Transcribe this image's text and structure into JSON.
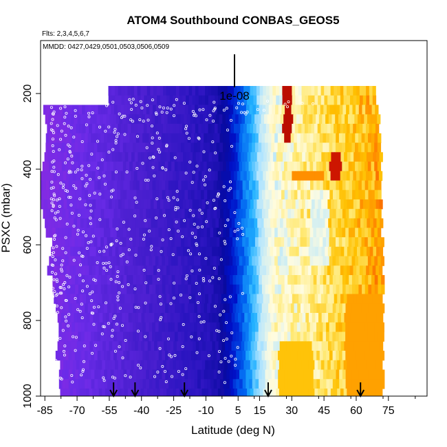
{
  "chart_data": {
    "type": "heatmap",
    "title": "ATOM4 Southbound CONBAS_GEOS5",
    "subtitle_flights": "Flts: 2,3,4,5,6,7",
    "subtitle_dates": "MMDD: 0427,0429,0501,0503,0506,0509",
    "xlabel": "Latitude (deg N)",
    "ylabel": "PSXC (mbar)",
    "xlim": [
      -87,
      93
    ],
    "ylim": [
      1000,
      60
    ],
    "y_reversed": true,
    "x_ticks": [
      -85,
      -70,
      -55,
      -40,
      -25,
      -10,
      5,
      15,
      30,
      45,
      60,
      75
    ],
    "x_ticks_labels": [
      "-85",
      "-70",
      "-55",
      "-40",
      "-25",
      "-10",
      "5",
      "15",
      "30",
      "45",
      "60",
      "75"
    ],
    "y_ticks": [
      200,
      400,
      600,
      800,
      1000
    ],
    "y_ticks_labels": [
      "200",
      "400",
      "600",
      "800",
      "1000"
    ],
    "scale_bar_label": "1e-08",
    "arrow_latitudes": [
      -53,
      -43,
      -20,
      19,
      62
    ],
    "colormap": [
      "#8a2be2",
      "#6a2be8",
      "#4b1fd0",
      "#2a14c0",
      "#0a0a9e",
      "#0010c8",
      "#0060f0",
      "#20b0ff",
      "#b0e4ff",
      "#fffce0",
      "#ffe870",
      "#ffc000",
      "#ff8000",
      "#e02000",
      "#a00000"
    ],
    "grid": false,
    "legend": "none"
  }
}
